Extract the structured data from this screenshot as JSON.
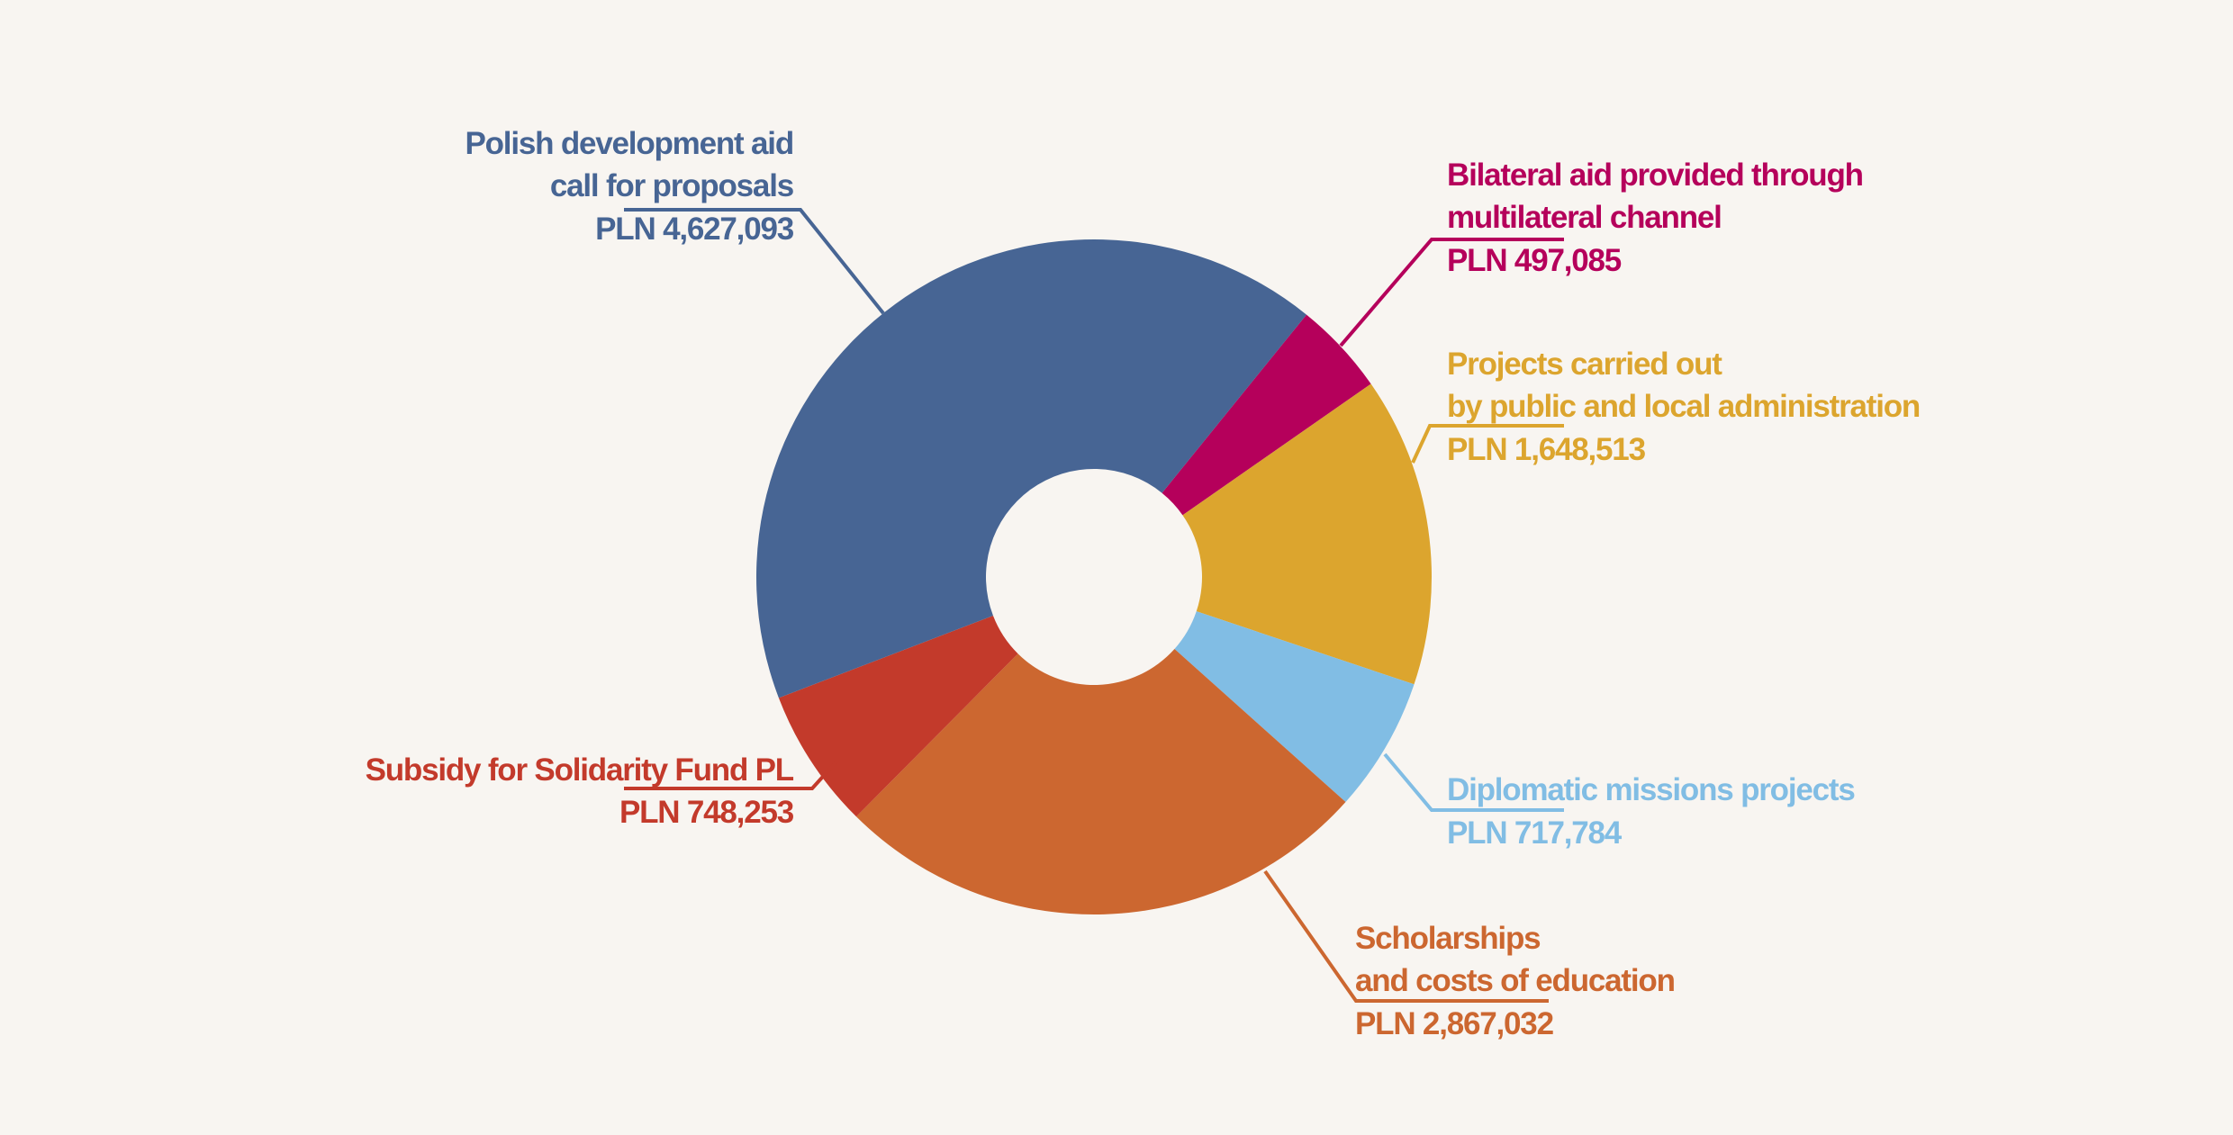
{
  "chart_data": {
    "type": "pie",
    "variant": "donut",
    "title": "",
    "currency": "PLN",
    "slices": [
      {
        "name": "Bilateral aid provided through multilateral channel",
        "label_lines": [
          "Bilateral aid provided through",
          "multilateral channel"
        ],
        "value": 497085,
        "value_label": "PLN 497,085",
        "color": "#b5005b"
      },
      {
        "name": "Projects carried out by public and local administration",
        "label_lines": [
          "Projects carried out",
          "by public and local administration"
        ],
        "value": 1648513,
        "value_label": "PLN 1,648,513",
        "color": "#dca52e"
      },
      {
        "name": "Diplomatic missions projects",
        "label_lines": [
          "Diplomatic missions projects"
        ],
        "value": 717784,
        "value_label": "PLN 717,784",
        "color": "#81bde4"
      },
      {
        "name": "Scholarships and costs of education",
        "label_lines": [
          "Scholarships",
          "and costs of education"
        ],
        "value": 2867032,
        "value_label": "PLN 2,867,032",
        "color": "#cc6730"
      },
      {
        "name": "Subsidy for Solidarity Fund PL",
        "label_lines": [
          "Subsidy for Solidarity Fund PL"
        ],
        "value": 748253,
        "value_label": "PLN 748,253",
        "color": "#c33a2b"
      },
      {
        "name": "Polish development aid call for proposals",
        "label_lines": [
          "Polish development aid",
          "call for proposals"
        ],
        "value": 4627093,
        "value_label": "PLN 4,627,093",
        "color": "#476594"
      }
    ]
  }
}
